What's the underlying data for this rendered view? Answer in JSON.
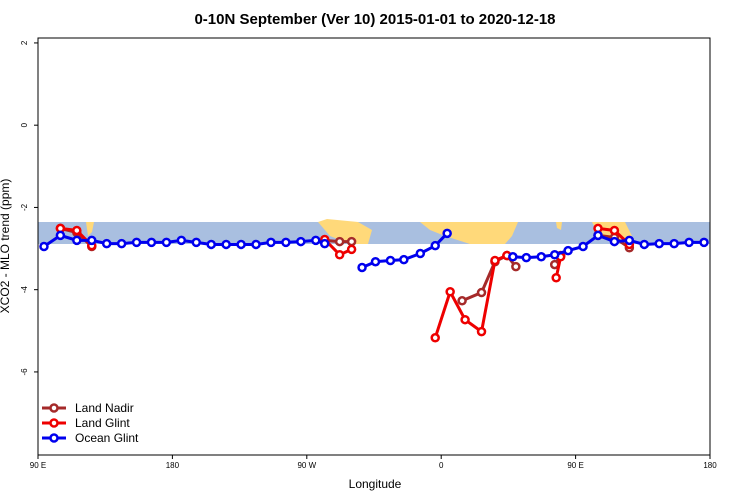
{
  "chart_data": {
    "type": "line",
    "title": "0-10N September (Ver 10)   2015-01-01 to 2020-12-18",
    "x_label": "Longitude",
    "y_label": "XCO2 - MLO trend (ppm)",
    "xlim": [
      90,
      540
    ],
    "xticks": [
      {
        "value": 90,
        "label": "90 E"
      },
      180,
      {
        "value": 270,
        "label": "90 W"
      },
      {
        "value": 360,
        "label": "0"
      },
      {
        "value": 450,
        "label": "90 E"
      },
      {
        "value": 540,
        "label": "180"
      }
    ],
    "ylim": [
      -8.02,
      2.12
    ],
    "yticks": [
      -6,
      -4,
      -2,
      0,
      2
    ],
    "legend": "bottom-left",
    "series": [
      {
        "name": "Land Nadir",
        "color": "#a52a2a",
        "x": [
          105,
          116,
          126,
          null,
          282,
          292,
          300,
          null,
          374,
          387,
          396,
          404,
          410,
          null,
          436,
          440,
          null,
          465,
          476,
          486
        ],
        "values": [
          -2.51,
          -2.61,
          -2.95,
          null,
          -2.8,
          -2.83,
          -2.83,
          null,
          -4.27,
          -4.07,
          -3.32,
          -3.17,
          -3.44,
          null,
          -3.39,
          -3.17,
          null,
          -2.68,
          -2.73,
          -2.98
        ]
      },
      {
        "name": "Land Glint",
        "color": "#ee0000",
        "x": [
          105,
          116,
          126,
          null,
          282,
          292,
          300,
          null,
          356,
          366,
          376,
          387,
          396,
          404,
          null,
          437,
          440,
          null,
          465,
          476,
          486
        ],
        "values": [
          -2.51,
          -2.56,
          -2.93,
          null,
          -2.78,
          -3.15,
          -3.02,
          null,
          -5.17,
          -4.05,
          -4.73,
          -5.02,
          -3.29,
          -3.17,
          null,
          -3.71,
          -3.2,
          null,
          -2.51,
          -2.56,
          -2.9
        ]
      },
      {
        "name": "Ocean Glint",
        "color": "#0000ee",
        "x": [
          94,
          105,
          116,
          126,
          136,
          146,
          156,
          166,
          176,
          186,
          196,
          206,
          216,
          226,
          236,
          246,
          256,
          266,
          276,
          282,
          null,
          307,
          316,
          326,
          335,
          346,
          356,
          364,
          null,
          408,
          417,
          427,
          436,
          445,
          455,
          465,
          476,
          486,
          496,
          506,
          516,
          526,
          536
        ],
        "values": [
          -2.95,
          -2.68,
          -2.8,
          -2.8,
          -2.88,
          -2.88,
          -2.85,
          -2.85,
          -2.85,
          -2.8,
          -2.85,
          -2.9,
          -2.9,
          -2.9,
          -2.9,
          -2.85,
          -2.85,
          -2.83,
          -2.8,
          -2.88,
          null,
          -3.46,
          -3.32,
          -3.29,
          -3.27,
          -3.12,
          -2.93,
          -2.63,
          null,
          -3.2,
          -3.22,
          -3.2,
          -3.15,
          -3.05,
          -2.95,
          -2.68,
          -2.83,
          -2.8,
          -2.9,
          -2.88,
          -2.88,
          -2.85,
          -2.85
        ]
      }
    ]
  }
}
